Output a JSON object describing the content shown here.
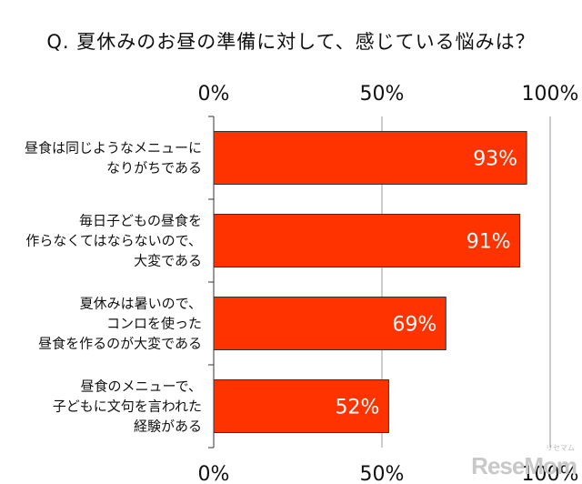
{
  "chart_data": {
    "type": "bar",
    "orientation": "horizontal",
    "title": "Q. 夏休みのお昼の準備に対して、感じている悩みは？",
    "categories": [
      [
        "昼食は同じようなメニューに",
        "なりがちである"
      ],
      [
        "毎日子どもの昼食を",
        "作らなくてはならないので、",
        "大変である"
      ],
      [
        "夏休みは暑いので、",
        "コンロを使った",
        "昼食を作るのが大変である"
      ],
      [
        "昼食のメニューで、",
        "子どもに文句を言われた",
        "経験がある"
      ]
    ],
    "values": [
      93,
      91,
      69,
      52
    ],
    "value_labels": [
      "93%",
      "91%",
      "69%",
      "52%"
    ],
    "xlim": [
      0,
      100
    ],
    "ticks": [
      0,
      50,
      100
    ],
    "tick_labels": [
      "0%",
      "50%",
      "100%"
    ],
    "tick_labels_position": "top and bottom",
    "grid": true,
    "legend": "none",
    "bar_color": "#ff3300",
    "bar_outline_color": "#333333",
    "gridline_color": "#999999"
  },
  "watermark": {
    "text": "ReseMom",
    "subtext": "リセマム"
  }
}
